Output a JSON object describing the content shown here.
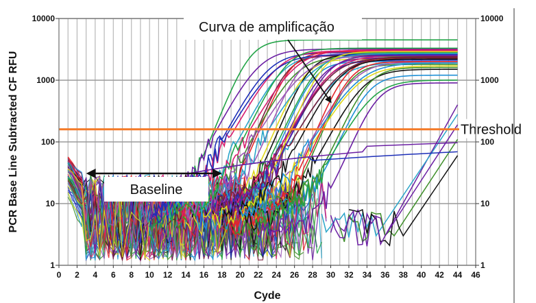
{
  "chart_data": {
    "type": "line",
    "title": "",
    "xlabel": "Cyde",
    "ylabel": "PCR Base Line Subtracted CF RFU",
    "x_range": [
      0,
      46
    ],
    "y_range": [
      1,
      10000
    ],
    "y_scale": "log",
    "grid": true,
    "x_ticks": [
      "0",
      "2",
      "4",
      "6",
      "8",
      "10",
      "12",
      "14",
      "16",
      "18",
      "20",
      "22",
      "24",
      "26",
      "28",
      "30",
      "32",
      "34",
      "36",
      "38",
      "40",
      "42",
      "44",
      "46"
    ],
    "y_ticks_left": [
      "10000",
      "1000",
      "100",
      "10",
      "1"
    ],
    "y_ticks_right": [
      "10000",
      "1000",
      "100",
      "10",
      "1"
    ],
    "threshold": {
      "label": "Threshold",
      "value": 160,
      "color": "#f47b2a"
    },
    "annotations": {
      "curve_label": "Curva de amplificação",
      "baseline_label": "Baseline",
      "baseline_range": [
        3,
        18
      ]
    },
    "series_colors": [
      "#22a447",
      "#6b1fa3",
      "#1d2fb8",
      "#d81e6e",
      "#2aa5c9",
      "#7a1f3c",
      "#e3262a",
      "#3f8f2a",
      "#9b59b6",
      "#e0d91c",
      "#111111",
      "#1f8fd6"
    ],
    "curve_midpoints": [
      18,
      19,
      20,
      21,
      21.5,
      22,
      22.5,
      23,
      23.5,
      24,
      24.5,
      25,
      25.5,
      26,
      26.5,
      27,
      27.5,
      28,
      28.5,
      29,
      29.5,
      30,
      30.5,
      31,
      31.5,
      32,
      20.5,
      23,
      25,
      27,
      29,
      31,
      24,
      26,
      28,
      30,
      22,
      26.5
    ],
    "curve_plateaus": [
      4500,
      3200,
      2800,
      3000,
      2600,
      2500,
      2900,
      2400,
      2700,
      2200,
      2600,
      2000,
      2800,
      2300,
      2100,
      2500,
      1900,
      2400,
      2200,
      1800,
      2000,
      1700,
      1500,
      1200,
      1000,
      900,
      2600,
      3100,
      2700,
      2300,
      2000,
      1600,
      2500,
      2900,
      2200,
      1900,
      3300,
      2500
    ],
    "late_curves": [
      {
        "from": 36,
        "to": 44,
        "end": 400
      },
      {
        "from": 35,
        "to": 44,
        "end": 280
      },
      {
        "from": 37,
        "to": 44,
        "end": 110
      },
      {
        "from": 38,
        "to": 44,
        "end": 60
      },
      {
        "from": 36,
        "to": 44,
        "end": 190
      }
    ],
    "flat_curves": [
      {
        "start": 28,
        "level": 50,
        "end": 44
      },
      {
        "start": 34,
        "level": 85,
        "end": 44
      }
    ]
  }
}
